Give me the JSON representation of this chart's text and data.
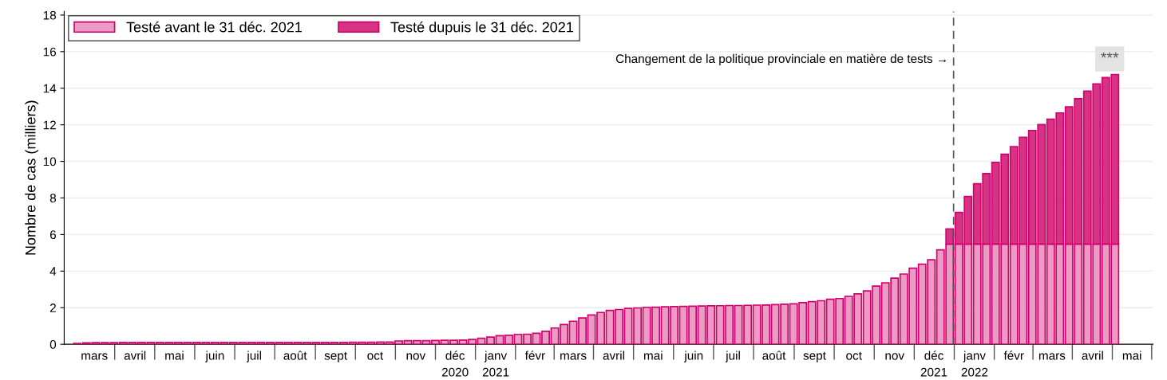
{
  "chart_data": {
    "type": "bar",
    "stacked": true,
    "ylabel": "Nombre de cas (milliers)",
    "x": [
      "2020-03-03",
      "2020-03-10",
      "2020-03-17",
      "2020-03-24",
      "2020-03-31",
      "2020-04-07",
      "2020-04-14",
      "2020-04-21",
      "2020-04-28",
      "2020-05-05",
      "2020-05-12",
      "2020-05-19",
      "2020-05-26",
      "2020-06-02",
      "2020-06-09",
      "2020-06-16",
      "2020-06-23",
      "2020-06-30",
      "2020-07-07",
      "2020-07-14",
      "2020-07-21",
      "2020-07-28",
      "2020-08-04",
      "2020-08-11",
      "2020-08-18",
      "2020-08-25",
      "2020-09-01",
      "2020-09-08",
      "2020-09-15",
      "2020-09-22",
      "2020-09-29",
      "2020-10-06",
      "2020-10-13",
      "2020-10-20",
      "2020-10-27",
      "2020-11-03",
      "2020-11-10",
      "2020-11-17",
      "2020-11-24",
      "2020-12-01",
      "2020-12-08",
      "2020-12-15",
      "2020-12-22",
      "2020-12-29",
      "2021-01-05",
      "2021-01-12",
      "2021-01-19",
      "2021-01-26",
      "2021-02-02",
      "2021-02-09",
      "2021-02-16",
      "2021-02-23",
      "2021-03-02",
      "2021-03-09",
      "2021-03-16",
      "2021-03-23",
      "2021-03-30",
      "2021-04-06",
      "2021-04-13",
      "2021-04-20",
      "2021-04-27",
      "2021-05-04",
      "2021-05-11",
      "2021-05-18",
      "2021-05-25",
      "2021-06-01",
      "2021-06-08",
      "2021-06-15",
      "2021-06-22",
      "2021-06-29",
      "2021-07-06",
      "2021-07-13",
      "2021-07-20",
      "2021-07-27",
      "2021-08-03",
      "2021-08-10",
      "2021-08-17",
      "2021-08-24",
      "2021-08-31",
      "2021-09-07",
      "2021-09-14",
      "2021-09-21",
      "2021-09-28",
      "2021-10-05",
      "2021-10-12",
      "2021-10-19",
      "2021-10-26",
      "2021-11-02",
      "2021-11-09",
      "2021-11-16",
      "2021-11-23",
      "2021-11-30",
      "2021-12-07",
      "2021-12-14",
      "2021-12-21",
      "2021-12-28",
      "2022-01-04",
      "2022-01-11",
      "2022-01-18",
      "2022-01-25",
      "2022-02-01",
      "2022-02-08",
      "2022-02-15",
      "2022-02-22",
      "2022-03-01",
      "2022-03-08",
      "2022-03-15",
      "2022-03-22",
      "2022-03-29",
      "2022-04-05",
      "2022-04-12",
      "2022-04-19",
      "2022-04-26",
      "2022-05-03"
    ],
    "series": [
      {
        "name": "Testé avant le 31 déc. 2021",
        "color": "#ec9cc4",
        "values": [
          0.05,
          0.08,
          0.09,
          0.09,
          0.09,
          0.1,
          0.1,
          0.1,
          0.1,
          0.1,
          0.1,
          0.1,
          0.1,
          0.1,
          0.1,
          0.1,
          0.1,
          0.1,
          0.1,
          0.1,
          0.1,
          0.1,
          0.1,
          0.1,
          0.1,
          0.1,
          0.1,
          0.1,
          0.1,
          0.1,
          0.11,
          0.11,
          0.11,
          0.12,
          0.12,
          0.18,
          0.2,
          0.2,
          0.2,
          0.21,
          0.22,
          0.22,
          0.23,
          0.26,
          0.33,
          0.39,
          0.47,
          0.49,
          0.54,
          0.55,
          0.6,
          0.71,
          0.89,
          1.08,
          1.26,
          1.44,
          1.6,
          1.74,
          1.85,
          1.9,
          1.96,
          1.99,
          2.02,
          2.03,
          2.05,
          2.06,
          2.07,
          2.08,
          2.09,
          2.1,
          2.11,
          2.12,
          2.12,
          2.13,
          2.14,
          2.15,
          2.17,
          2.19,
          2.21,
          2.28,
          2.33,
          2.38,
          2.46,
          2.5,
          2.62,
          2.76,
          2.92,
          3.18,
          3.36,
          3.62,
          3.84,
          4.16,
          4.38,
          4.62,
          5.16,
          5.48,
          5.48,
          5.48,
          5.48,
          5.48,
          5.48,
          5.48,
          5.48,
          5.48,
          5.48,
          5.48,
          5.48,
          5.48,
          5.48,
          5.48,
          5.48,
          5.48,
          5.48,
          5.48
        ]
      },
      {
        "name": "Testé dupuis le 31 déc. 2021",
        "color": "#d63384",
        "values": [
          null,
          null,
          null,
          null,
          null,
          null,
          null,
          null,
          null,
          null,
          null,
          null,
          null,
          null,
          null,
          null,
          null,
          null,
          null,
          null,
          null,
          null,
          null,
          null,
          null,
          null,
          null,
          null,
          null,
          null,
          null,
          null,
          null,
          null,
          null,
          null,
          null,
          null,
          null,
          null,
          null,
          null,
          null,
          null,
          null,
          null,
          null,
          null,
          null,
          null,
          null,
          null,
          null,
          null,
          null,
          null,
          null,
          null,
          null,
          null,
          null,
          null,
          null,
          null,
          null,
          null,
          null,
          null,
          null,
          null,
          null,
          null,
          null,
          null,
          null,
          null,
          null,
          null,
          null,
          null,
          null,
          null,
          null,
          null,
          null,
          null,
          null,
          null,
          null,
          null,
          null,
          null,
          null,
          null,
          null,
          0.83,
          1.73,
          2.6,
          3.3,
          3.85,
          4.46,
          4.91,
          5.33,
          5.84,
          6.21,
          6.53,
          6.83,
          7.17,
          7.5,
          7.95,
          8.36,
          8.75,
          9.1,
          9.27
        ]
      }
    ],
    "xlim": [
      "2020-02-22",
      "2022-06-01"
    ],
    "xticks": [
      {
        "value": "2020-03-16",
        "label": "mars"
      },
      {
        "value": "2020-04-16",
        "label": "avril"
      },
      {
        "value": "2020-05-16",
        "label": "mai"
      },
      {
        "value": "2020-06-16",
        "label": "juin"
      },
      {
        "value": "2020-07-16",
        "label": "juil"
      },
      {
        "value": "2020-08-16",
        "label": "août"
      },
      {
        "value": "2020-09-16",
        "label": "sept"
      },
      {
        "value": "2020-10-16",
        "label": "oct"
      },
      {
        "value": "2020-11-16",
        "label": "nov"
      },
      {
        "value": "2020-12-16",
        "label": "déc\n2020"
      },
      {
        "value": "2021-01-16",
        "label": "janv\n2021"
      },
      {
        "value": "2021-02-15",
        "label": "févr"
      },
      {
        "value": "2021-03-16",
        "label": "mars"
      },
      {
        "value": "2021-04-16",
        "label": "avril"
      },
      {
        "value": "2021-05-16",
        "label": "mai"
      },
      {
        "value": "2021-06-16",
        "label": "juin"
      },
      {
        "value": "2021-07-16",
        "label": "juil"
      },
      {
        "value": "2021-08-16",
        "label": "août"
      },
      {
        "value": "2021-09-16",
        "label": "sept"
      },
      {
        "value": "2021-10-16",
        "label": "oct"
      },
      {
        "value": "2021-11-16",
        "label": "nov"
      },
      {
        "value": "2021-12-16",
        "label": "déc\n2021"
      },
      {
        "value": "2022-01-16",
        "label": "janv\n2022"
      },
      {
        "value": "2022-02-15",
        "label": "févr"
      },
      {
        "value": "2022-03-16",
        "label": "mars"
      },
      {
        "value": "2022-04-16",
        "label": "avril"
      },
      {
        "value": "2022-05-16",
        "label": "mai"
      }
    ],
    "ylim": [
      0,
      18.2
    ],
    "yticks": [
      0,
      2,
      4,
      6,
      8,
      10,
      12,
      14,
      16,
      18
    ],
    "grid": "y",
    "legend": "top left",
    "ref_lines": [
      {
        "axis": "x",
        "value": "2021-12-31",
        "label": "Changement de la politique provinciale en matière de tests →",
        "color": "#555555",
        "line_style": "dashed"
      }
    ],
    "annotations": [
      {
        "text": "***",
        "x": "2022-04-29",
        "y": 15.6
      }
    ]
  }
}
